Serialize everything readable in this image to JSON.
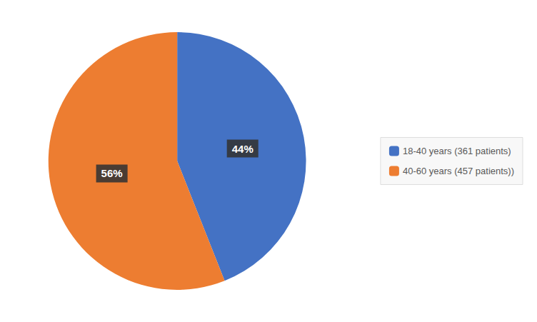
{
  "chart_data": {
    "type": "pie",
    "categories": [
      "18-40 years (361 patients)",
      "40-60 years (457 patients))"
    ],
    "values": [
      44,
      56
    ],
    "value_labels": [
      "44%",
      "56%"
    ],
    "colors": [
      "#4472C4",
      "#ED7D31"
    ],
    "data_labels": true,
    "legend": "right"
  }
}
